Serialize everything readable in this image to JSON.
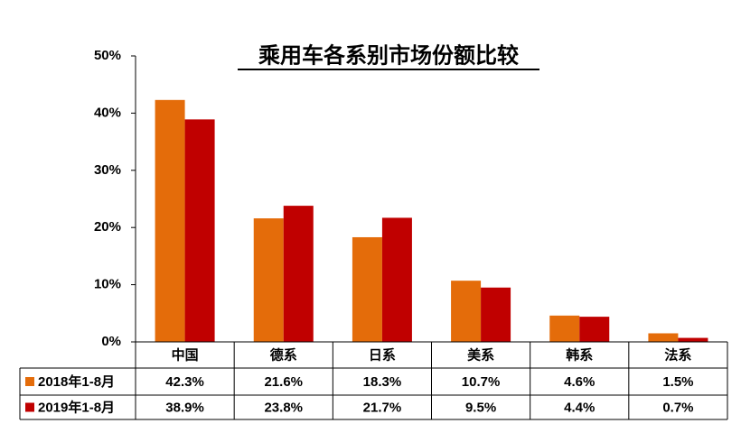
{
  "chart_data": {
    "type": "bar",
    "title": "乘用车各系别市场份额比较",
    "categories": [
      "中国",
      "德系",
      "日系",
      "美系",
      "韩系",
      "法系"
    ],
    "series": [
      {
        "name": "2018年1-8月",
        "color": "#e46c0a",
        "values": [
          42.3,
          21.6,
          18.3,
          10.7,
          4.6,
          1.5
        ],
        "value_labels": [
          "42.3%",
          "21.6%",
          "18.3%",
          "10.7%",
          "4.6%",
          "1.5%"
        ]
      },
      {
        "name": "2019年1-8月",
        "color": "#c00000",
        "values": [
          38.9,
          23.8,
          21.7,
          9.5,
          4.4,
          0.7
        ],
        "value_labels": [
          "38.9%",
          "23.8%",
          "21.7%",
          "9.5%",
          "4.4%",
          "0.7%"
        ]
      }
    ],
    "ylim": [
      0,
      50
    ],
    "yticks": [
      {
        "value": 0,
        "label": "0%"
      },
      {
        "value": 10,
        "label": "10%"
      },
      {
        "value": 20,
        "label": "20%"
      },
      {
        "value": 30,
        "label": "30%"
      },
      {
        "value": 40,
        "label": "40%"
      },
      {
        "value": 50,
        "label": "50%"
      }
    ],
    "grid": false
  }
}
